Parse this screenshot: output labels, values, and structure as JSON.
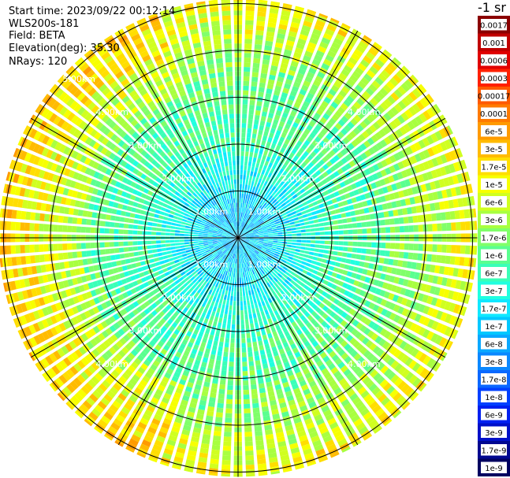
{
  "header": {
    "start_time": "Start time: 2023/09/22 00:12:14",
    "instrument": "WLS200s-181",
    "field": "Field: BETA",
    "elevation": "Elevation(deg): 35.30",
    "nrays": "NRays: 120"
  },
  "chart_data": {
    "type": "heatmap",
    "projection": "polar",
    "range_rings_km": [
      1,
      2,
      3,
      4,
      5
    ],
    "range_labels": [
      "1.00km",
      "2.00km",
      "3.00km",
      "4.00km",
      "5.00km"
    ],
    "spokes_deg": [
      0,
      30,
      60,
      90,
      120,
      150,
      180,
      210,
      240,
      270,
      300,
      330
    ],
    "n_rays": 120,
    "max_range_km": 5.1,
    "colorbar": {
      "title": "-1 sr",
      "scale": "log",
      "labels": [
        "0.0017",
        "0.001",
        "0.0006",
        "0.0003",
        "0.00017",
        "0.0001",
        "6e-5",
        "3e-5",
        "1.7e-5",
        "1e-5",
        "6e-6",
        "3e-6",
        "1.7e-6",
        "1e-6",
        "6e-7",
        "3e-7",
        "1.7e-7",
        "1e-7",
        "6e-8",
        "3e-8",
        "1.7e-8",
        "1e-8",
        "6e-9",
        "3e-9",
        "1.7e-9",
        "1e-9"
      ],
      "colors": [
        "#8b0000",
        "#c00000",
        "#e00000",
        "#ff2000",
        "#ff5a00",
        "#ff7a00",
        "#ff9a00",
        "#ffbb00",
        "#ffde00",
        "#f7ff00",
        "#d0ff20",
        "#a8ff40",
        "#80ff6a",
        "#5aff90",
        "#3affb8",
        "#20ffe0",
        "#10e8ff",
        "#00c8ff",
        "#0aa8ff",
        "#0a88ff",
        "#0a68ff",
        "#0040ff",
        "#0020f0",
        "#0010c8",
        "#000890",
        "#000060"
      ]
    },
    "radial_profile": [
      {
        "r_km": 0.5,
        "value": "1e-7"
      },
      {
        "r_km": 1.0,
        "value": "1.7e-7"
      },
      {
        "r_km": 2.0,
        "value": "6e-7"
      },
      {
        "r_km": 3.0,
        "value": "1e-6"
      },
      {
        "r_km": 4.0,
        "value": "3e-6"
      },
      {
        "r_km": 5.0,
        "value": "1e-5"
      }
    ]
  }
}
